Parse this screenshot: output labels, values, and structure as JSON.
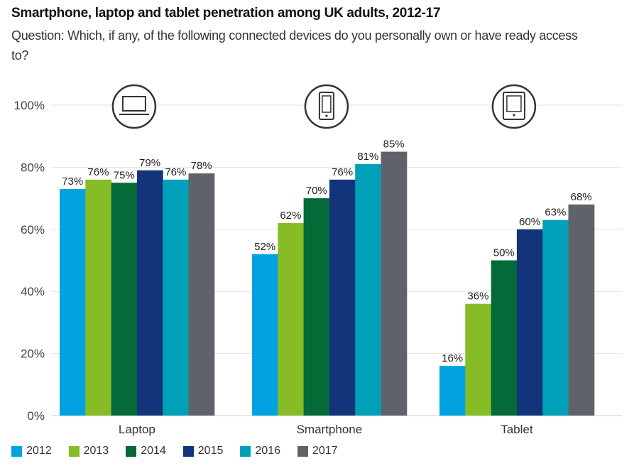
{
  "chart_data": {
    "type": "bar",
    "title": "Smartphone, laptop and tablet penetration among UK adults, 2012-17",
    "subtitle": "Question: Which, if any, of the following connected devices do you personally own or have ready access to?",
    "xlabel": "",
    "ylabel": "",
    "ylim": [
      0,
      100
    ],
    "yticks": [
      0,
      20,
      40,
      60,
      80,
      100
    ],
    "ytick_labels": [
      "0%",
      "20%",
      "40%",
      "60%",
      "80%",
      "100%"
    ],
    "grid": true,
    "legend_position": "bottom-left",
    "categories": [
      "Laptop",
      "Smartphone",
      "Tablet"
    ],
    "category_icons": [
      "laptop-icon",
      "smartphone-icon",
      "tablet-icon"
    ],
    "series": [
      {
        "name": "2012",
        "color": "#00a3e0",
        "values": [
          73,
          52,
          16
        ]
      },
      {
        "name": "2013",
        "color": "#86bc25",
        "values": [
          76,
          62,
          36
        ]
      },
      {
        "name": "2014",
        "color": "#046a38",
        "values": [
          75,
          70,
          50
        ]
      },
      {
        "name": "2015",
        "color": "#12347a",
        "values": [
          79,
          76,
          60
        ]
      },
      {
        "name": "2016",
        "color": "#00a1b8",
        "values": [
          76,
          81,
          63
        ]
      },
      {
        "name": "2017",
        "color": "#5f6369",
        "values": [
          78,
          85,
          68
        ]
      }
    ],
    "value_suffix": "%"
  }
}
